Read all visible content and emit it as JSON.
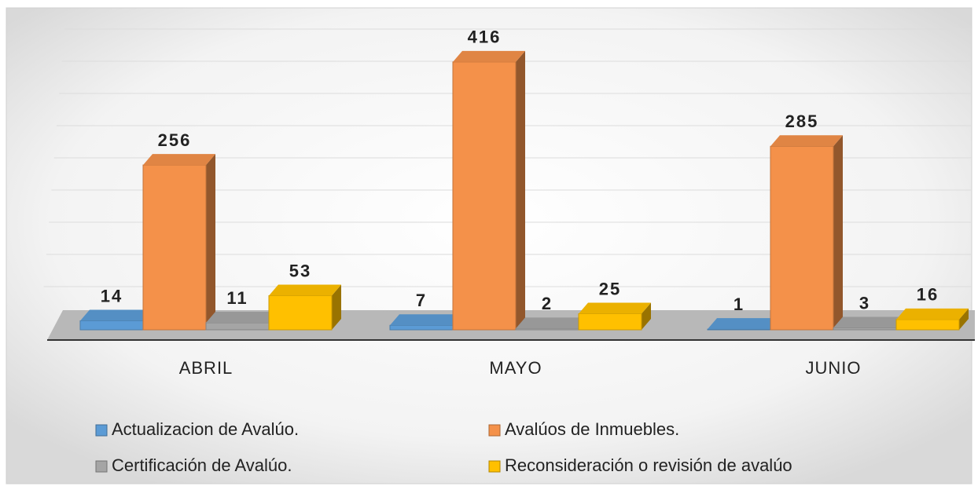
{
  "chart_data": {
    "type": "bar3d",
    "categories": [
      "ABRIL",
      "MAYO",
      "JUNIO"
    ],
    "series": [
      {
        "name": "Actualizacion de Avalúo.",
        "color": "#5b9bd5",
        "values": [
          14,
          7,
          1
        ]
      },
      {
        "name": "Avalúos de Inmuebles.",
        "color": "#f4914a",
        "values": [
          256,
          416,
          285
        ]
      },
      {
        "name": "Certificación de Avalúo.",
        "color": "#a5a5a5",
        "values": [
          11,
          2,
          3
        ]
      },
      {
        "name": "Reconsideración o revisión de avalúo",
        "color": "#ffc000",
        "values": [
          53,
          25,
          16
        ]
      }
    ],
    "ylim": [
      0,
      450
    ],
    "yticks": [
      0,
      50,
      100,
      150,
      200,
      250,
      300,
      350,
      400,
      450
    ],
    "grid": true
  }
}
